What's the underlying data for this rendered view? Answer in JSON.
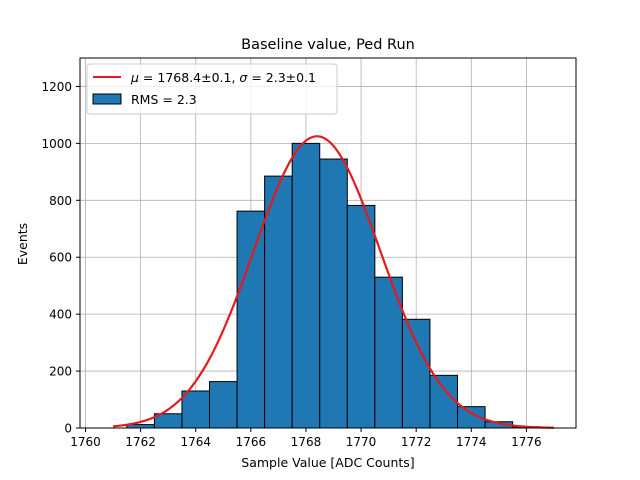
{
  "chart_data": {
    "type": "bar",
    "title": "Baseline value, Ped Run",
    "xlabel": "Sample Value [ADC Counts]",
    "ylabel": "Events",
    "xlim": [
      1759.8,
      1777.8
    ],
    "ylim": [
      0,
      1300
    ],
    "grid": true,
    "legend_position": "upper-left",
    "xticks": [
      1760,
      1762,
      1764,
      1766,
      1768,
      1770,
      1772,
      1774,
      1776
    ],
    "yticks": [
      0,
      200,
      400,
      600,
      800,
      1000,
      1200
    ],
    "histogram": {
      "name": "RMS = 2.3",
      "color": "#1f77b4",
      "edge_color": "#000000",
      "bins": [
        {
          "left": 1761.5,
          "right": 1762.5,
          "value": 12
        },
        {
          "left": 1762.5,
          "right": 1763.5,
          "value": 50
        },
        {
          "left": 1763.5,
          "right": 1764.5,
          "value": 130
        },
        {
          "left": 1764.5,
          "right": 1765.5,
          "value": 163
        },
        {
          "left": 1765.5,
          "right": 1766.5,
          "value": 762
        },
        {
          "left": 1766.5,
          "right": 1767.5,
          "value": 885
        },
        {
          "left": 1767.5,
          "right": 1768.5,
          "value": 1000
        },
        {
          "left": 1768.5,
          "right": 1769.5,
          "value": 945
        },
        {
          "left": 1769.5,
          "right": 1770.5,
          "value": 782
        },
        {
          "left": 1770.5,
          "right": 1771.5,
          "value": 530
        },
        {
          "left": 1771.5,
          "right": 1772.5,
          "value": 382
        },
        {
          "left": 1772.5,
          "right": 1773.5,
          "value": 185
        },
        {
          "left": 1773.5,
          "right": 1774.5,
          "value": 75
        },
        {
          "left": 1774.5,
          "right": 1775.5,
          "value": 22
        },
        {
          "left": 1775.5,
          "right": 1776.5,
          "value": 4
        }
      ]
    },
    "fit": {
      "name_parts": {
        "mu_symbol": "μ",
        "mu_text": " = 1768.4±0.1, ",
        "sigma_symbol": "σ",
        "sigma_text": " = 2.3±0.1"
      },
      "color": "#e41a1c",
      "mean": 1768.4,
      "sigma": 2.3,
      "amplitude": 1025,
      "x_range": [
        1761,
        1777
      ]
    }
  }
}
